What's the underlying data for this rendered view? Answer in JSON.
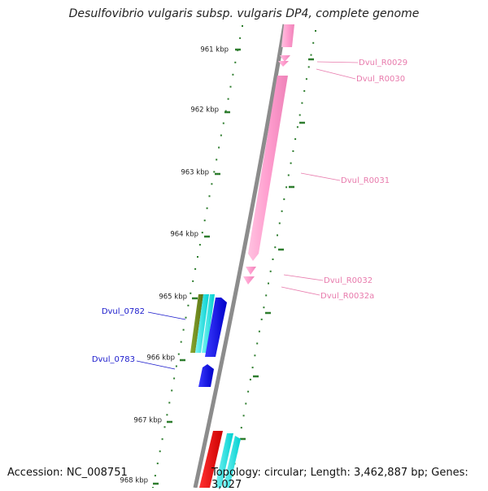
{
  "title": "Desulfovibrio vulgaris subsp. vulgaris DP4, complete genome",
  "footer": {
    "accession": "Accession: NC_008751",
    "topology": "Topology: circular; Length: 3,462,887 bp; Genes: 3,027"
  },
  "colors": {
    "backbone": "#8c8c8c",
    "tick": "#2e7d2e",
    "rna": "#ff9ecf",
    "rna_label": "#e87aac",
    "cds_blue": "#0000e6",
    "cds_label": "#1a1acc",
    "cds_olive": "#6e8c1e",
    "cds_cyan": "#00e5e5",
    "cds_red": "#ee0000"
  },
  "ruler": {
    "unit": "kbp",
    "labels": [
      "961 kbp",
      "962 kbp",
      "963 kbp",
      "964 kbp",
      "965 kbp",
      "966 kbp",
      "967 kbp",
      "968 kbp"
    ]
  },
  "features": [
    {
      "name": "Dvul_R0029",
      "type": "rna",
      "strand": "+"
    },
    {
      "name": "Dvul_R0030",
      "type": "rna",
      "strand": "+"
    },
    {
      "name": "Dvul_R0031",
      "type": "rna",
      "strand": "+"
    },
    {
      "name": "Dvul_R0032",
      "type": "rna",
      "strand": "+"
    },
    {
      "name": "Dvul_R0032a",
      "type": "rna",
      "strand": "+"
    },
    {
      "name": "Dvul_0782",
      "type": "cds",
      "strand": "-"
    },
    {
      "name": "Dvul_0783",
      "type": "cds",
      "strand": "-"
    }
  ]
}
